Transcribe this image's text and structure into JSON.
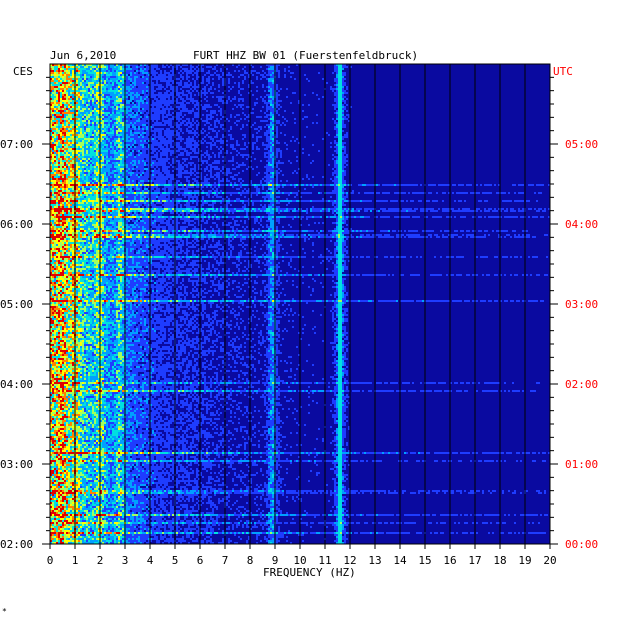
{
  "chart_data": {
    "type": "heatmap",
    "title": "FURT HHZ BW 01 (Fuerstenfeldbruck)",
    "date": "Jun 6,2010",
    "left_axis_label": "CES",
    "right_axis_label": "UTC",
    "xlabel": "FREQUENCY (HZ)",
    "xlim": [
      0,
      20
    ],
    "x_ticks": [
      "0",
      "1",
      "2",
      "3",
      "4",
      "5",
      "6",
      "7",
      "8",
      "9",
      "10",
      "11",
      "12",
      "13",
      "14",
      "15",
      "16",
      "17",
      "18",
      "19",
      "20"
    ],
    "y_ticks_local": [
      "07:00",
      "06:00",
      "05:00",
      "04:00",
      "03:00",
      "02:00"
    ],
    "y_ticks_utc": [
      "05:00",
      "04:00",
      "03:00",
      "02:00",
      "01:00",
      "00:00"
    ],
    "time_range_local": [
      "02:00",
      "07:50"
    ],
    "time_range_utc": [
      "00:00",
      "05:50"
    ],
    "grid": true,
    "colormap": [
      "#0a0aa0",
      "#1e3cff",
      "#00a0ff",
      "#00e0e0",
      "#a0ff60",
      "#ffff00",
      "#ff8000",
      "#e00000"
    ],
    "persistent_bands_hz": [
      0.5,
      1.0,
      2.0,
      2.8,
      8.9,
      11.6
    ],
    "notes": "Ambient noise spectrogram; energy concentrated below 3 Hz with a steady line near 11.6 Hz."
  },
  "footer_mark": "*"
}
